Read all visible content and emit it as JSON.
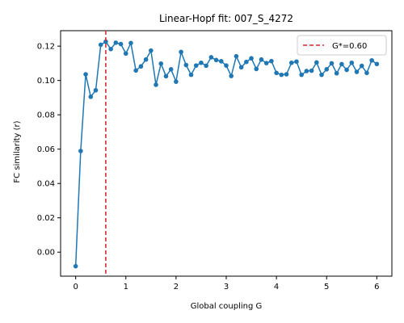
{
  "chart_data": {
    "type": "line",
    "title": "Linear-Hopf fit: 007_S_4272",
    "xlabel": "Global coupling G",
    "ylabel": "FC similarity (r)",
    "xlim": [
      -0.3,
      6.3
    ],
    "ylim": [
      -0.014,
      0.129
    ],
    "xticks": [
      0,
      1,
      2,
      3,
      4,
      5,
      6
    ],
    "xtick_labels": [
      "0",
      "1",
      "2",
      "3",
      "4",
      "5",
      "6"
    ],
    "yticks": [
      0.0,
      0.02,
      0.04,
      0.06,
      0.08,
      0.1,
      0.12
    ],
    "ytick_labels": [
      "0.00",
      "0.02",
      "0.04",
      "0.06",
      "0.08",
      "0.10",
      "0.12"
    ],
    "grid": false,
    "legend_position": "top-right",
    "series": [
      {
        "color": "#1f77b4",
        "marker": "circle",
        "x": [
          0.0,
          0.1,
          0.2,
          0.3,
          0.4,
          0.5,
          0.6,
          0.7,
          0.8,
          0.9,
          1.0,
          1.1,
          1.2,
          1.3,
          1.4,
          1.5,
          1.6,
          1.7,
          1.8,
          1.9,
          2.0,
          2.1,
          2.2,
          2.3,
          2.4,
          2.5,
          2.6,
          2.7,
          2.8,
          2.9,
          3.0,
          3.1,
          3.2,
          3.3,
          3.4,
          3.5,
          3.6,
          3.7,
          3.8,
          3.9,
          4.0,
          4.1,
          4.2,
          4.3,
          4.4,
          4.5,
          4.6,
          4.7,
          4.8,
          4.9,
          5.0,
          5.1,
          5.2,
          5.3,
          5.4,
          5.5,
          5.6,
          5.7,
          5.8,
          5.9,
          6.0
        ],
        "values": [
          -0.0082,
          0.0589,
          0.1036,
          0.0905,
          0.0943,
          0.1208,
          0.1226,
          0.1183,
          0.122,
          0.1212,
          0.1157,
          0.1218,
          0.1058,
          0.1082,
          0.1122,
          0.1174,
          0.0975,
          0.1098,
          0.1025,
          0.1065,
          0.0993,
          0.1166,
          0.109,
          0.1033,
          0.1087,
          0.1103,
          0.1086,
          0.1135,
          0.1119,
          0.1112,
          0.1087,
          0.1026,
          0.1141,
          0.1077,
          0.1108,
          0.1129,
          0.1067,
          0.1122,
          0.1101,
          0.1113,
          0.1044,
          0.1033,
          0.1036,
          0.1103,
          0.111,
          0.1033,
          0.1055,
          0.1057,
          0.1105,
          0.1033,
          0.1065,
          0.11,
          0.1042,
          0.1095,
          0.1062,
          0.1103,
          0.105,
          0.1085,
          0.1044,
          0.1117,
          0.1096
        ]
      }
    ],
    "reference_line": {
      "x": 0.6,
      "label": "G*=0.60",
      "color": "#d62728",
      "style": "dashed"
    }
  }
}
